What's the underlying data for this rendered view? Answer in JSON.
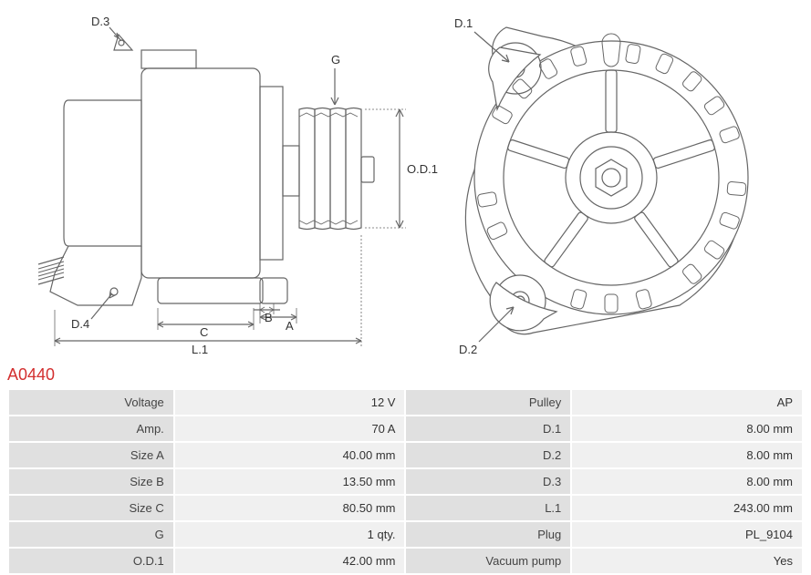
{
  "part_number": "A0440",
  "diagram": {
    "stroke_color": "#666666",
    "label_color": "#333333",
    "bg_color": "#ffffff",
    "label_fontsize": 13,
    "side_view": {
      "labels": {
        "D3": "D.3",
        "D4": "D.4",
        "G": "G",
        "OD1": "O.D.1",
        "A": "A",
        "B": "B",
        "C": "C",
        "L1": "L.1"
      }
    },
    "front_view": {
      "labels": {
        "D1": "D.1",
        "D2": "D.2"
      }
    }
  },
  "specs": {
    "left": [
      {
        "label": "Voltage",
        "value": "12 V"
      },
      {
        "label": "Amp.",
        "value": "70 A"
      },
      {
        "label": "Size A",
        "value": "40.00 mm"
      },
      {
        "label": "Size B",
        "value": "13.50 mm"
      },
      {
        "label": "Size C",
        "value": "80.50 mm"
      },
      {
        "label": "G",
        "value": "1 qty."
      },
      {
        "label": "O.D.1",
        "value": "42.00 mm"
      }
    ],
    "right": [
      {
        "label": "Pulley",
        "value": "AP"
      },
      {
        "label": "D.1",
        "value": "8.00 mm"
      },
      {
        "label": "D.2",
        "value": "8.00 mm"
      },
      {
        "label": "D.3",
        "value": "8.00 mm"
      },
      {
        "label": "L.1",
        "value": "243.00 mm"
      },
      {
        "label": "Plug",
        "value": "PL_9104"
      },
      {
        "label": "Vacuum pump",
        "value": "Yes"
      }
    ]
  }
}
